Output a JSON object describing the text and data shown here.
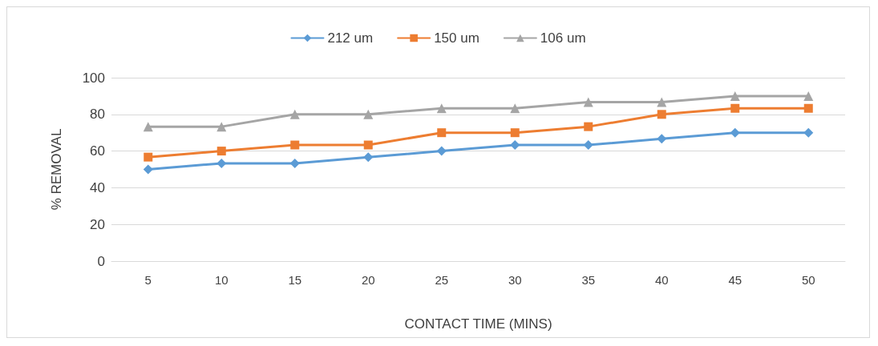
{
  "chart_data": {
    "type": "line",
    "xlabel": "CONTACT TIME (MINS)",
    "ylabel": "% REMOVAL",
    "categories": [
      "5",
      "10",
      "15",
      "20",
      "25",
      "30",
      "35",
      "40",
      "45",
      "50"
    ],
    "series": [
      {
        "name": "212 um",
        "color": "#5b9bd5",
        "marker": "diamond",
        "values": [
          50,
          53.3,
          53.3,
          56.7,
          60,
          63.3,
          63.3,
          66.7,
          70,
          70
        ]
      },
      {
        "name": "150 um",
        "color": "#ed7d31",
        "marker": "square",
        "values": [
          56.7,
          60,
          63.3,
          63.3,
          70,
          70,
          73.3,
          80,
          83.3,
          83.3
        ]
      },
      {
        "name": "106 um",
        "color": "#a5a5a5",
        "marker": "triangle",
        "values": [
          73.3,
          73.3,
          80,
          80,
          83.3,
          83.3,
          86.7,
          86.7,
          90,
          90
        ]
      }
    ],
    "ylim": [
      0,
      100
    ],
    "yticks": [
      0,
      20,
      40,
      60,
      80,
      100
    ],
    "grid": "y",
    "legend": "top",
    "line_style": "solid"
  }
}
